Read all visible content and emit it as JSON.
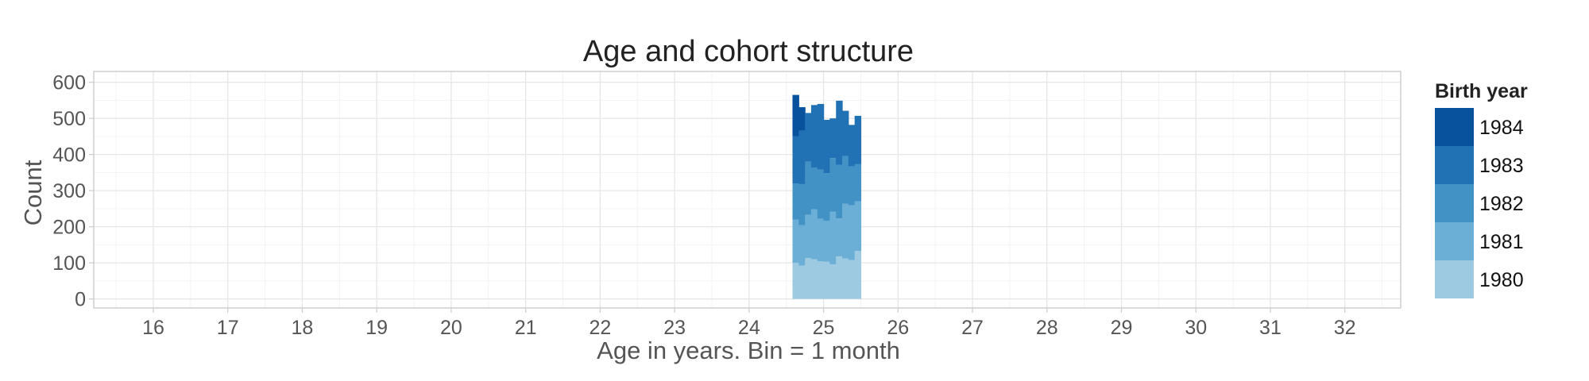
{
  "chart_data": {
    "type": "bar",
    "stacked": true,
    "title": "Age and cohort structure",
    "xlabel": "Age in years. Bin = 1 month",
    "ylabel": "Count",
    "xlim": [
      15.2,
      32.75
    ],
    "ylim": [
      -25,
      630
    ],
    "x_ticks": [
      16,
      17,
      18,
      19,
      20,
      21,
      22,
      23,
      24,
      25,
      26,
      27,
      28,
      29,
      30,
      31,
      32
    ],
    "y_ticks": [
      0,
      100,
      200,
      300,
      400,
      500,
      600
    ],
    "grid": true,
    "legend": {
      "title": "Birth year",
      "position": "right"
    },
    "bin_width_years": 0.0833,
    "bins_age_start": [
      24.583,
      24.667,
      24.75,
      24.833,
      24.917,
      25.0,
      25.083,
      25.167,
      25.25,
      25.333,
      25.417
    ],
    "series": [
      {
        "name": "1980",
        "color": "#9ecae1",
        "values": [
          100,
          92,
          113,
          110,
          104,
          103,
          96,
          118,
          112,
          108,
          133
        ]
      },
      {
        "name": "1981",
        "color": "#6baed6",
        "values": [
          120,
          112,
          120,
          138,
          118,
          113,
          146,
          105,
          152,
          151,
          137
        ]
      },
      {
        "name": "1982",
        "color": "#4292c6",
        "values": [
          100,
          114,
          147,
          116,
          136,
          132,
          148,
          148,
          132,
          108,
          103
        ]
      },
      {
        "name": "1983",
        "color": "#2171b5",
        "values": [
          130,
          148,
          135,
          173,
          182,
          148,
          110,
          178,
          125,
          115,
          134
        ]
      },
      {
        "name": "1984",
        "color": "#08519c",
        "values": [
          115,
          65,
          0,
          0,
          0,
          0,
          0,
          0,
          0,
          0,
          0
        ]
      }
    ]
  }
}
